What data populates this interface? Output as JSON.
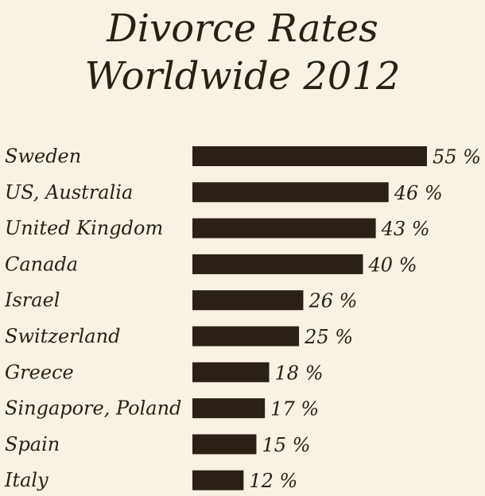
{
  "chart_data": {
    "type": "bar",
    "orientation": "horizontal",
    "title_lines": [
      "Divorce Rates",
      "Worldwide 2012"
    ],
    "categories": [
      "Sweden",
      "US, Australia",
      "United Kingdom",
      "Canada",
      "Israel",
      "Switzerland",
      "Greece",
      "Singapore, Poland",
      "Spain",
      "Italy"
    ],
    "values": [
      55,
      46,
      43,
      40,
      26,
      25,
      18,
      17,
      15,
      12
    ],
    "value_labels": [
      "55 %",
      "46 %",
      "43 %",
      "40 %",
      "26 %",
      "25 %",
      "18 %",
      "17 %",
      "15 %",
      "12 %"
    ],
    "unit": "%",
    "xlim": [
      0,
      55
    ],
    "xlabel": "",
    "ylabel": "",
    "grid": false,
    "legend": "none",
    "colors": {
      "bar": "#2b2015",
      "background": "#f7f2e3",
      "text": "#2b2015"
    }
  }
}
